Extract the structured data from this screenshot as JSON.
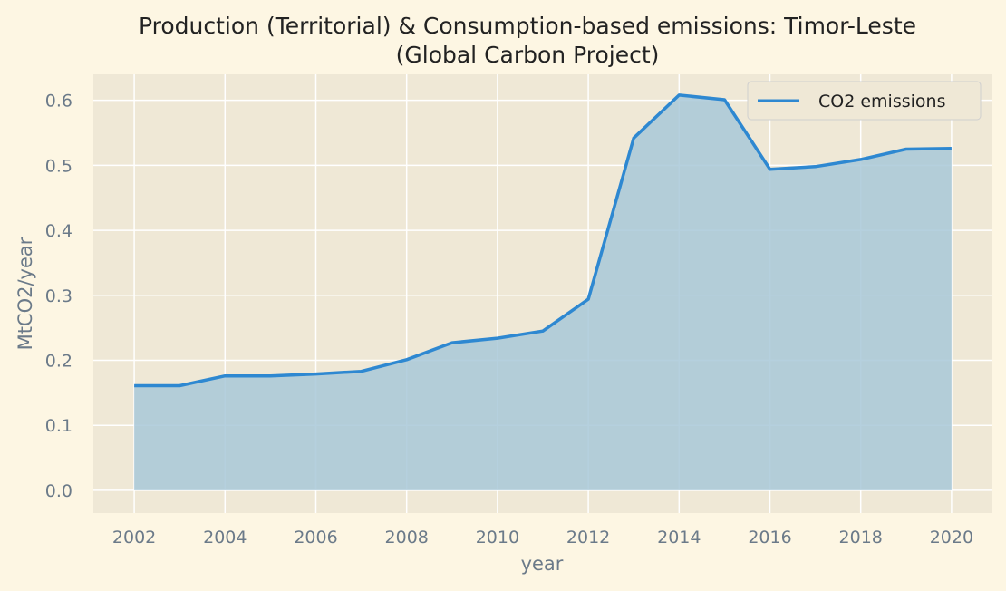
{
  "chart_data": {
    "type": "area",
    "title_lines": [
      "Production (Territorial) & Consumption-based emissions: Timor-Leste",
      "(Global Carbon Project)"
    ],
    "xlabel": "year",
    "ylabel": "MtCO2/year",
    "xlim": [
      2001.1,
      2020.9
    ],
    "ylim": [
      -0.035,
      0.64
    ],
    "x_ticks": [
      "2002",
      "2004",
      "2006",
      "2008",
      "2010",
      "2012",
      "2014",
      "2016",
      "2018",
      "2020"
    ],
    "y_ticks": [
      "0.0",
      "0.1",
      "0.2",
      "0.3",
      "0.4",
      "0.5",
      "0.6"
    ],
    "grid": true,
    "legend_position": "top-right",
    "series": [
      {
        "name": "CO2 emissions",
        "color": "#2e88d1",
        "fill_color": "#a8c8d8",
        "x": [
          2002,
          2003,
          2004,
          2005,
          2006,
          2007,
          2008,
          2009,
          2010,
          2011,
          2012,
          2013,
          2014,
          2015,
          2016,
          2017,
          2018,
          2019,
          2020
        ],
        "y": [
          0.161,
          0.161,
          0.176,
          0.176,
          0.179,
          0.183,
          0.201,
          0.227,
          0.234,
          0.245,
          0.294,
          0.542,
          0.608,
          0.601,
          0.494,
          0.498,
          0.509,
          0.525,
          0.526
        ]
      }
    ],
    "colors": {
      "page_background": "#fdf6e3",
      "plot_background": "#efe8d6",
      "grid": "#ffffff"
    }
  }
}
